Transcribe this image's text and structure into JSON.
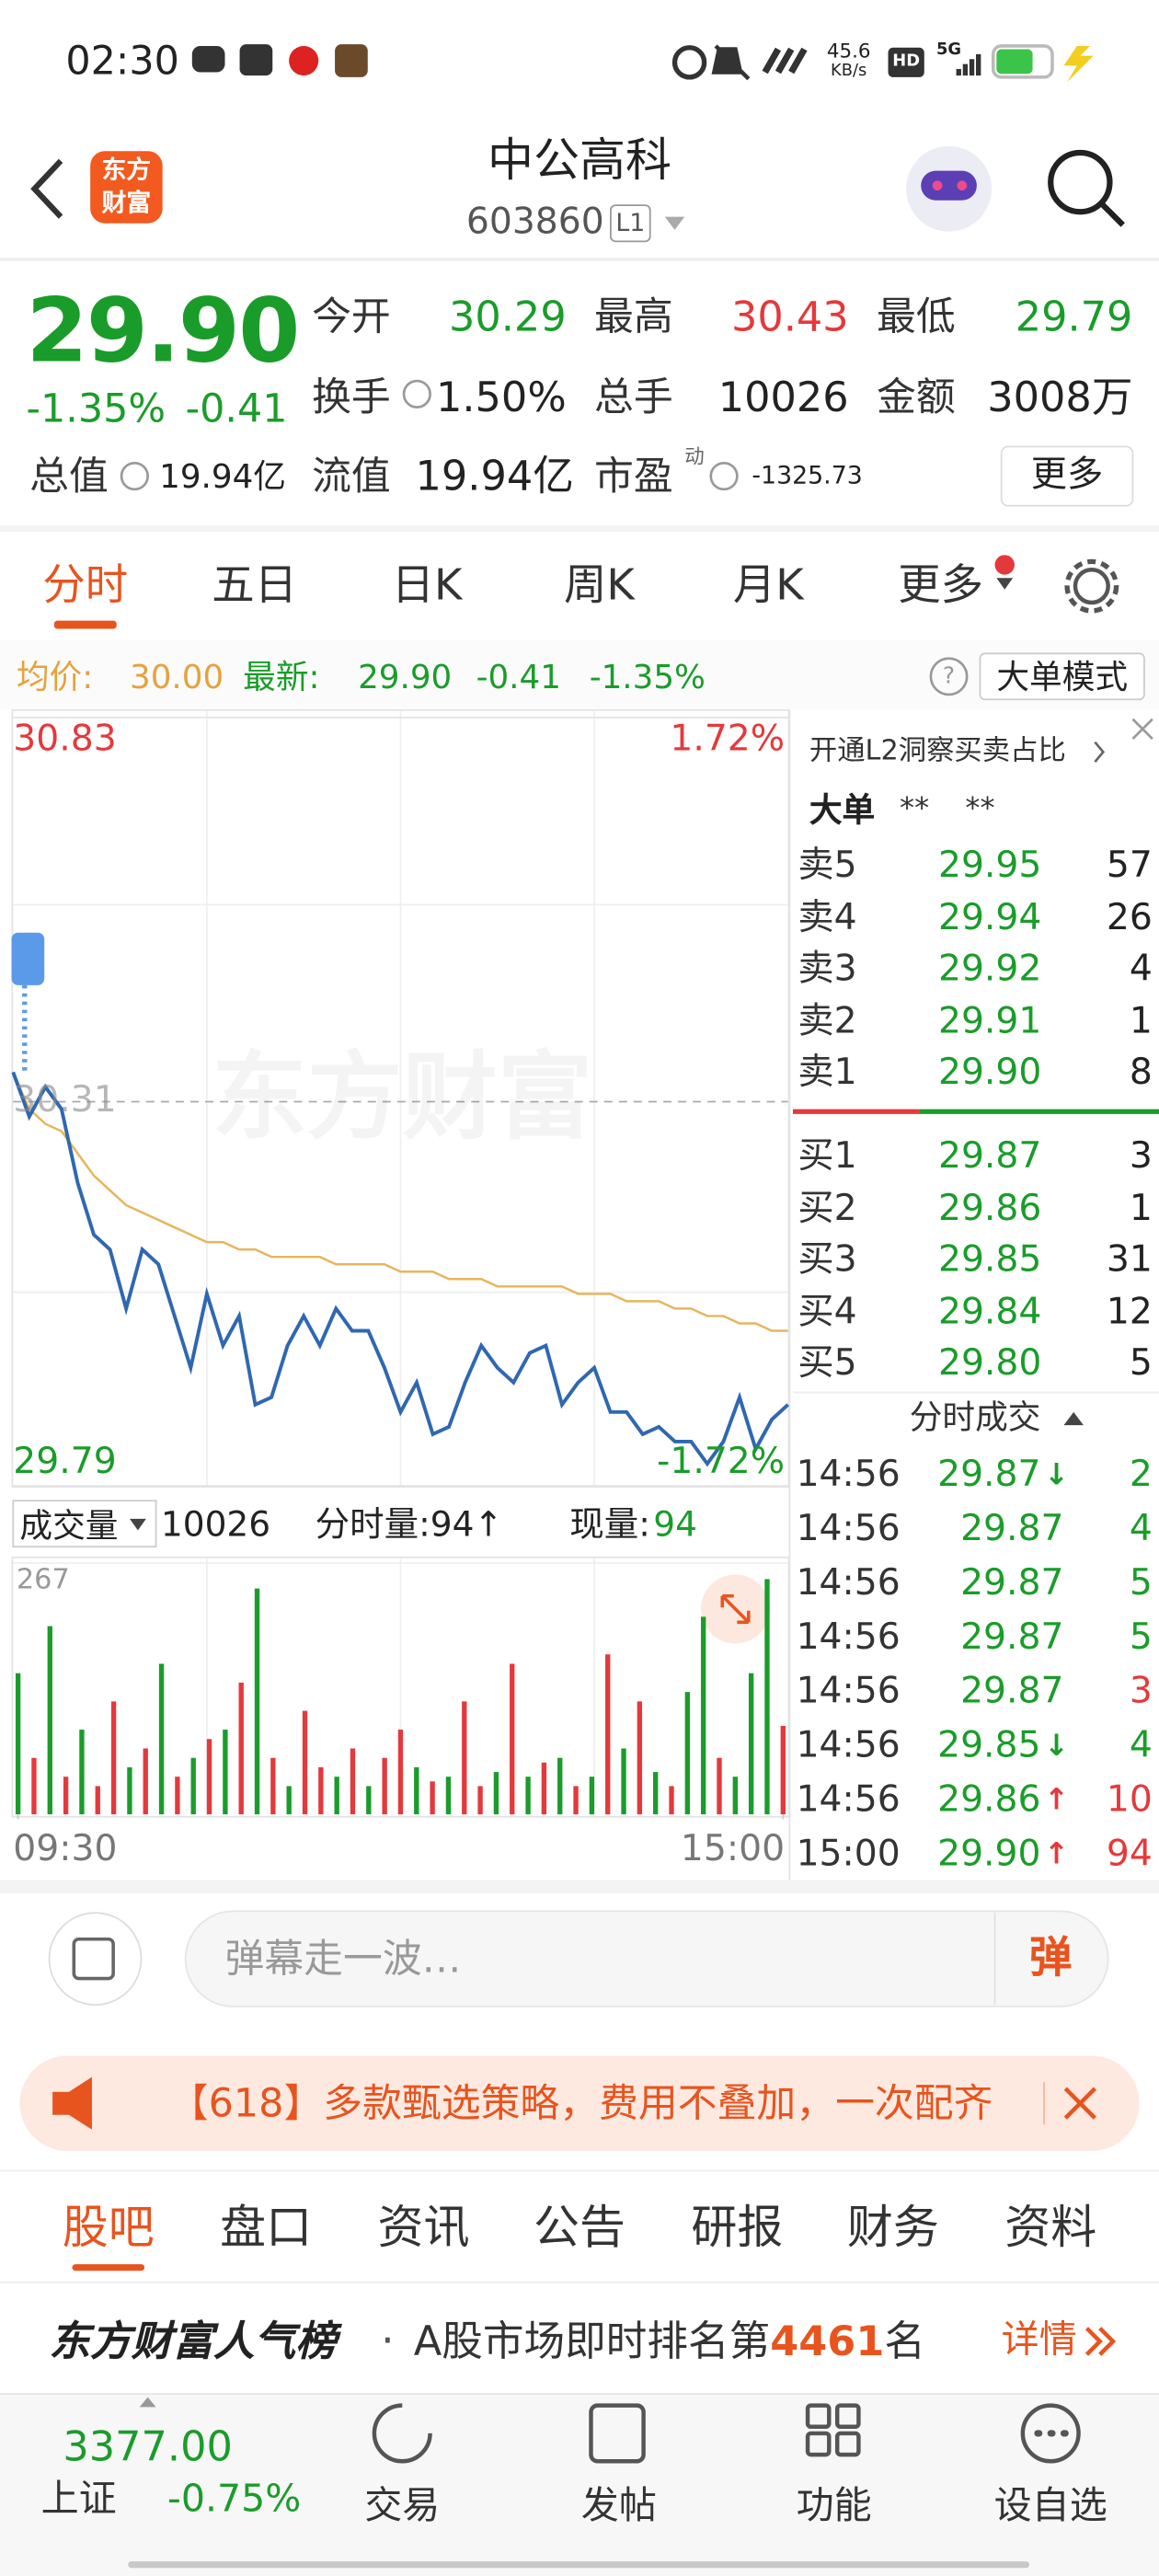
{
  "status_bar": {
    "time": "02:30",
    "speed": "45.6",
    "speed_unit": "KB/s",
    "hd": "HD",
    "network": "5G"
  },
  "header": {
    "logo": [
      "东方",
      "财富"
    ],
    "title": "中公高科",
    "code": "603860",
    "level": "L1"
  },
  "quote": {
    "price": "29.90",
    "change_pct": "-1.35%",
    "change": "-0.41",
    "fields": [
      {
        "label": "今开",
        "value": "30.29",
        "color": "#1a9c2a"
      },
      {
        "label": "最高",
        "value": "30.43",
        "color": "#e4393c"
      },
      {
        "label": "最低",
        "value": "29.79",
        "color": "#1a9c2a"
      },
      {
        "label": "换手",
        "value": "1.50%"
      },
      {
        "label": "总手",
        "value": "10026"
      },
      {
        "label": "金额",
        "value": "3008万"
      },
      {
        "label": "总值",
        "value": "19.94亿"
      },
      {
        "label": "流值",
        "value": "19.94亿"
      },
      {
        "label": "市盈",
        "sup": "动",
        "value": "-1325.73"
      }
    ],
    "more": "更多"
  },
  "tabs": {
    "items": [
      "分时",
      "五日",
      "日K",
      "周K",
      "月K",
      "更多"
    ],
    "active": 0
  },
  "summary": {
    "avg_label": "均价:",
    "avg": "30.00",
    "last_label": "最新:",
    "last": "29.90",
    "change": "-0.41",
    "change_pct": "-1.35%",
    "help": "?",
    "mode": "大单模式"
  },
  "chart_data": [
    {
      "type": "line",
      "watermark": "东方财富",
      "x": [
        0,
        5,
        10,
        15,
        20,
        25,
        30,
        35,
        40,
        45,
        50,
        55,
        60,
        65,
        70,
        75,
        80,
        85,
        90,
        95,
        100,
        105,
        110,
        115,
        120,
        125,
        130,
        135,
        140,
        145,
        150,
        155,
        160,
        165,
        170,
        175,
        180,
        185,
        190,
        195,
        200,
        205,
        210,
        215,
        220,
        225,
        230,
        235,
        240
      ],
      "series": [
        {
          "color": "#2f68b0",
          "values": [
            30.35,
            30.29,
            30.33,
            30.3,
            30.2,
            30.13,
            30.11,
            30.03,
            30.11,
            30.09,
            30.02,
            29.95,
            30.05,
            29.98,
            30.02,
            29.9,
            29.91,
            29.98,
            30.02,
            29.98,
            30.03,
            30.0,
            30.0,
            29.95,
            29.89,
            29.93,
            29.86,
            29.87,
            29.93,
            29.98,
            29.95,
            29.93,
            29.97,
            29.98,
            29.9,
            29.93,
            29.95,
            29.89,
            29.89,
            29.86,
            29.87,
            29.85,
            29.85,
            29.82,
            29.85,
            29.91,
            29.84,
            29.88,
            29.9
          ]
        },
        {
          "color": "#e6b65c",
          "values": [
            30.35,
            30.3,
            30.28,
            30.27,
            30.24,
            30.21,
            30.19,
            30.17,
            30.16,
            30.15,
            30.14,
            30.13,
            30.12,
            30.12,
            30.11,
            30.11,
            30.1,
            30.1,
            30.1,
            30.1,
            30.09,
            30.09,
            30.09,
            30.09,
            30.08,
            30.08,
            30.08,
            30.07,
            30.07,
            30.07,
            30.06,
            30.06,
            30.06,
            30.06,
            30.06,
            30.05,
            30.05,
            30.05,
            30.04,
            30.04,
            30.04,
            30.03,
            30.03,
            30.02,
            30.02,
            30.01,
            30.01,
            30.0,
            30.0
          ]
        }
      ],
      "xlim": [
        0,
        240
      ],
      "ylim": [
        29.79,
        30.83
      ],
      "yticks": [
        29.79,
        30.31,
        30.83
      ],
      "pct_labels": [
        "1.72%",
        "-1.72%"
      ]
    },
    {
      "type": "bar",
      "x": [
        0,
        5,
        10,
        15,
        20,
        25,
        30,
        35,
        40,
        45,
        50,
        55,
        60,
        65,
        70,
        75,
        80,
        85,
        90,
        95,
        100,
        105,
        110,
        115,
        120,
        125,
        130,
        135,
        140,
        145,
        150,
        155,
        160,
        165,
        170,
        175,
        180,
        185,
        190,
        195,
        200,
        205,
        210,
        215,
        220,
        225,
        230,
        235,
        240
      ],
      "values": [
        150,
        60,
        200,
        40,
        90,
        30,
        120,
        50,
        70,
        160,
        40,
        60,
        80,
        90,
        140,
        240,
        60,
        30,
        110,
        50,
        40,
        70,
        30,
        60,
        90,
        50,
        35,
        40,
        120,
        30,
        45,
        160,
        40,
        55,
        60,
        30,
        40,
        170,
        70,
        120,
        45,
        30,
        130,
        210,
        60,
        40,
        150,
        250,
        94
      ],
      "colors": [
        "#1a9c2a",
        "#e4393c",
        "#1a9c2a",
        "#e4393c",
        "#1a9c2a",
        "#e4393c",
        "#e4393c",
        "#1a9c2a",
        "#e4393c",
        "#1a9c2a",
        "#e4393c",
        "#1a9c2a",
        "#e4393c",
        "#1a9c2a",
        "#e4393c",
        "#1a9c2a",
        "#e4393c",
        "#1a9c2a",
        "#e4393c",
        "#e4393c",
        "#1a9c2a",
        "#e4393c",
        "#1a9c2a",
        "#e4393c",
        "#e4393c",
        "#1a9c2a",
        "#e4393c",
        "#1a9c2a",
        "#e4393c",
        "#e4393c",
        "#1a9c2a",
        "#e4393c",
        "#1a9c2a",
        "#e4393c",
        "#1a9c2a",
        "#e4393c",
        "#1a9c2a",
        "#e4393c",
        "#1a9c2a",
        "#e4393c",
        "#1a9c2a",
        "#e4393c",
        "#1a9c2a",
        "#1a9c2a",
        "#e4393c",
        "#1a9c2a",
        "#1a9c2a",
        "#1a9c2a",
        "#e4393c"
      ],
      "xlim": [
        0,
        240
      ],
      "ylim": [
        0,
        267
      ],
      "yticks": [
        267
      ],
      "xticks": [
        {
          "value": 0,
          "label": "09:30"
        },
        {
          "value": 240,
          "label": "15:00"
        }
      ]
    }
  ],
  "volume_header": {
    "label": "成交量",
    "total": "10026",
    "minute_volume": "分时量:94↑",
    "current_label": "现量:",
    "current": "94"
  },
  "order_book": {
    "promo": "开通L2洞察买卖占比",
    "big_order": "大单",
    "big_buy": "**",
    "big_sell": "**",
    "asks": [
      {
        "label": "卖5",
        "price": "29.95",
        "qty": "57"
      },
      {
        "label": "卖4",
        "price": "29.94",
        "qty": "26"
      },
      {
        "label": "卖3",
        "price": "29.92",
        "qty": "4"
      },
      {
        "label": "卖2",
        "price": "29.91",
        "qty": "1"
      },
      {
        "label": "卖1",
        "price": "29.90",
        "qty": "8"
      }
    ],
    "bids": [
      {
        "label": "买1",
        "price": "29.87",
        "qty": "3"
      },
      {
        "label": "买2",
        "price": "29.86",
        "qty": "1"
      },
      {
        "label": "买3",
        "price": "29.85",
        "qty": "31"
      },
      {
        "label": "买4",
        "price": "29.84",
        "qty": "12"
      },
      {
        "label": "买5",
        "price": "29.80",
        "qty": "5"
      }
    ]
  },
  "trades": {
    "title": "分时成交",
    "rows": [
      {
        "time": "14:56",
        "price": "29.87",
        "arrow": "↓",
        "qty": "2",
        "color": "#1a9c2a"
      },
      {
        "time": "14:56",
        "price": "29.87",
        "qty": "4",
        "color": "#1a9c2a"
      },
      {
        "time": "14:56",
        "price": "29.87",
        "qty": "5",
        "color": "#1a9c2a"
      },
      {
        "time": "14:56",
        "price": "29.87",
        "qty": "5",
        "color": "#1a9c2a"
      },
      {
        "time": "14:56",
        "price": "29.87",
        "qty": "3",
        "color": "#e4393c"
      },
      {
        "time": "14:56",
        "price": "29.85",
        "arrow": "↓",
        "qty": "4",
        "color": "#1a9c2a"
      },
      {
        "time": "14:56",
        "price": "29.86",
        "arrow": "↑",
        "qty": "10",
        "color": "#e4393c"
      },
      {
        "time": "15:00",
        "price": "29.90",
        "arrow": "↑",
        "qty": "94",
        "color": "#e4393c"
      }
    ]
  },
  "danmaku": {
    "placeholder": "弹幕走一波…",
    "button": "弹"
  },
  "banner": {
    "text": "【618】多款甄选策略，费用不叠加，一次配齐"
  },
  "section_tabs": {
    "items": [
      "股吧",
      "盘口",
      "资讯",
      "公告",
      "研报",
      "财务",
      "资料"
    ],
    "active": 0
  },
  "ranking": {
    "title": "东方财富人气榜",
    "dot": "·",
    "prefix": "A股市场即时排名第",
    "rank": "4461",
    "suffix": "名",
    "details": "详情"
  },
  "bottom_nav": {
    "index_value": "3377.00",
    "index_name": "上证",
    "index_change": "-0.75%",
    "items": [
      "交易",
      "发帖",
      "功能",
      "设自选"
    ]
  }
}
